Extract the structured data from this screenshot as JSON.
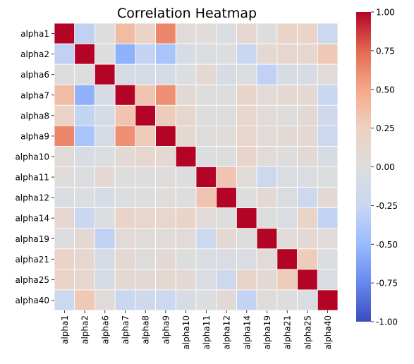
{
  "chart_data": {
    "type": "heatmap",
    "title": "Correlation Heatmap",
    "labels": [
      "alpha1",
      "alpha2",
      "alpha6",
      "alpha7",
      "alpha8",
      "alpha9",
      "alpha10",
      "alpha11",
      "alpha12",
      "alpha14",
      "alpha19",
      "alpha21",
      "alpha25",
      "alpha40"
    ],
    "matrix": [
      [
        1.0,
        -0.3,
        -0.02,
        0.38,
        0.2,
        0.63,
        0.05,
        0.03,
        -0.05,
        0.12,
        0.0,
        0.2,
        0.2,
        -0.22
      ],
      [
        -0.3,
        1.0,
        0.0,
        -0.55,
        -0.28,
        -0.42,
        -0.08,
        -0.04,
        -0.01,
        -0.25,
        0.1,
        0.12,
        0.12,
        0.3
      ],
      [
        -0.02,
        0.0,
        1.0,
        -0.08,
        -0.1,
        -0.1,
        -0.02,
        0.1,
        -0.08,
        -0.02,
        -0.3,
        -0.08,
        -0.08,
        0.05
      ],
      [
        0.38,
        -0.55,
        -0.08,
        1.0,
        0.33,
        0.6,
        0.08,
        0.0,
        -0.02,
        0.18,
        0.06,
        0.1,
        0.1,
        -0.25
      ],
      [
        0.2,
        -0.28,
        -0.1,
        0.33,
        1.0,
        0.28,
        0.15,
        0.0,
        0.0,
        0.15,
        0.05,
        0.02,
        0.08,
        -0.18
      ],
      [
        0.63,
        -0.42,
        -0.1,
        0.6,
        0.28,
        1.0,
        0.1,
        0.02,
        0.03,
        0.14,
        0.05,
        0.08,
        0.1,
        -0.22
      ],
      [
        0.05,
        -0.08,
        -0.02,
        0.08,
        0.15,
        0.1,
        1.0,
        -0.02,
        0.0,
        0.18,
        0.04,
        0.0,
        0.08,
        -0.08
      ],
      [
        0.03,
        -0.04,
        0.1,
        0.0,
        0.0,
        0.02,
        -0.02,
        1.0,
        0.33,
        0.05,
        -0.22,
        -0.05,
        -0.05,
        -0.02
      ],
      [
        -0.05,
        -0.01,
        -0.08,
        -0.02,
        0.0,
        0.03,
        0.0,
        0.33,
        1.0,
        0.0,
        0.1,
        -0.05,
        -0.2,
        0.08
      ],
      [
        0.12,
        -0.25,
        -0.02,
        0.18,
        0.15,
        0.14,
        0.18,
        0.05,
        0.0,
        1.0,
        0.0,
        -0.05,
        0.18,
        -0.28
      ],
      [
        0.0,
        0.1,
        -0.3,
        0.06,
        0.05,
        0.05,
        0.04,
        -0.22,
        0.1,
        0.0,
        1.0,
        0.05,
        0.08,
        0.05
      ],
      [
        0.2,
        0.12,
        -0.08,
        0.1,
        0.02,
        0.08,
        0.0,
        -0.05,
        -0.05,
        -0.05,
        0.05,
        1.0,
        0.28,
        -0.02
      ],
      [
        0.2,
        0.12,
        -0.08,
        0.1,
        0.08,
        0.1,
        0.08,
        -0.05,
        -0.2,
        0.18,
        0.08,
        0.28,
        1.0,
        -0.05
      ],
      [
        -0.22,
        0.3,
        0.05,
        -0.25,
        -0.18,
        -0.22,
        -0.08,
        -0.02,
        0.08,
        -0.28,
        0.05,
        -0.02,
        -0.05,
        1.0
      ]
    ],
    "vmin": -1.0,
    "vmax": 1.0,
    "colormap": "coolwarm",
    "colormap_stops": [
      "#3b4cc0",
      "#6788ee",
      "#9abbff",
      "#c9d7f0",
      "#dddddd",
      "#edd1c2",
      "#f7a889",
      "#e26952",
      "#b40426"
    ],
    "colorbar_ticks": [
      "-1.00",
      "-0.75",
      "-0.50",
      "-0.25",
      "0.00",
      "0.25",
      "0.50",
      "0.75",
      "1.00"
    ],
    "grid_line_color": "#ffffff"
  }
}
